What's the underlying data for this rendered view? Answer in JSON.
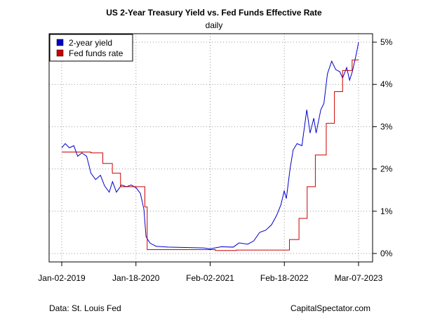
{
  "chart_data": {
    "type": "line",
    "title": "US 2-Year Treasury Yield vs. Fed Funds Effective Rate",
    "subtitle": "daily",
    "xlabel": "",
    "ylabel": "",
    "x_ticks": [
      "Jan-02-2019",
      "Jan-18-2020",
      "Feb-02-2021",
      "Feb-18-2022",
      "Mar-07-2023"
    ],
    "xlim": [
      "2019-01-02",
      "2023-03-07"
    ],
    "y_ticks": [
      "0%",
      "1%",
      "2%",
      "3%",
      "4%",
      "5%"
    ],
    "ylim": [
      -0.2,
      5.2
    ],
    "y_axis_side": "right",
    "grid": true,
    "legend_position": "top-left",
    "series": [
      {
        "name": "2-year yield",
        "color": "#0000CC",
        "points": [
          [
            "2019-01-02",
            2.5
          ],
          [
            "2019-01-20",
            2.6
          ],
          [
            "2019-02-10",
            2.5
          ],
          [
            "2019-03-05",
            2.55
          ],
          [
            "2019-03-25",
            2.3
          ],
          [
            "2019-04-15",
            2.38
          ],
          [
            "2019-05-10",
            2.3
          ],
          [
            "2019-06-01",
            1.9
          ],
          [
            "2019-06-25",
            1.75
          ],
          [
            "2019-07-20",
            1.85
          ],
          [
            "2019-08-10",
            1.6
          ],
          [
            "2019-09-03",
            1.45
          ],
          [
            "2019-09-20",
            1.7
          ],
          [
            "2019-10-10",
            1.45
          ],
          [
            "2019-11-05",
            1.62
          ],
          [
            "2019-12-01",
            1.58
          ],
          [
            "2019-12-25",
            1.62
          ],
          [
            "2020-01-20",
            1.55
          ],
          [
            "2020-02-10",
            1.42
          ],
          [
            "2020-02-28",
            1.05
          ],
          [
            "2020-03-10",
            0.4
          ],
          [
            "2020-03-20",
            0.32
          ],
          [
            "2020-04-01",
            0.24
          ],
          [
            "2020-05-01",
            0.17
          ],
          [
            "2020-07-01",
            0.15
          ],
          [
            "2020-10-01",
            0.14
          ],
          [
            "2021-01-01",
            0.13
          ],
          [
            "2021-02-02",
            0.11
          ],
          [
            "2021-04-01",
            0.16
          ],
          [
            "2021-06-01",
            0.15
          ],
          [
            "2021-07-01",
            0.25
          ],
          [
            "2021-08-15",
            0.22
          ],
          [
            "2021-09-15",
            0.3
          ],
          [
            "2021-10-15",
            0.5
          ],
          [
            "2021-11-15",
            0.55
          ],
          [
            "2021-12-15",
            0.68
          ],
          [
            "2022-01-10",
            0.9
          ],
          [
            "2022-02-01",
            1.15
          ],
          [
            "2022-02-18",
            1.48
          ],
          [
            "2022-03-01",
            1.3
          ],
          [
            "2022-03-20",
            2.0
          ],
          [
            "2022-04-05",
            2.45
          ],
          [
            "2022-04-25",
            2.6
          ],
          [
            "2022-05-20",
            2.55
          ],
          [
            "2022-06-14",
            3.4
          ],
          [
            "2022-07-01",
            2.85
          ],
          [
            "2022-07-20",
            3.2
          ],
          [
            "2022-08-01",
            2.85
          ],
          [
            "2022-08-25",
            3.4
          ],
          [
            "2022-09-10",
            3.55
          ],
          [
            "2022-09-28",
            4.25
          ],
          [
            "2022-10-20",
            4.55
          ],
          [
            "2022-11-10",
            4.35
          ],
          [
            "2022-12-01",
            4.3
          ],
          [
            "2022-12-15",
            4.15
          ],
          [
            "2023-01-05",
            4.4
          ],
          [
            "2023-01-20",
            4.1
          ],
          [
            "2023-02-03",
            4.3
          ],
          [
            "2023-02-20",
            4.65
          ],
          [
            "2023-03-01",
            4.85
          ],
          [
            "2023-03-07",
            5.0
          ]
        ]
      },
      {
        "name": "Fed funds rate",
        "color": "#CC0000",
        "points": [
          [
            "2019-01-02",
            2.4
          ],
          [
            "2019-06-01",
            2.38
          ],
          [
            "2019-08-01",
            2.13
          ],
          [
            "2019-09-19",
            1.9
          ],
          [
            "2019-10-31",
            1.58
          ],
          [
            "2020-03-04",
            1.1
          ],
          [
            "2020-03-16",
            0.09
          ],
          [
            "2020-06-01",
            0.09
          ],
          [
            "2021-03-01",
            0.07
          ],
          [
            "2021-06-17",
            0.08
          ],
          [
            "2022-03-17",
            0.33
          ],
          [
            "2022-05-05",
            0.83
          ],
          [
            "2022-06-16",
            1.58
          ],
          [
            "2022-07-28",
            2.33
          ],
          [
            "2022-09-22",
            3.08
          ],
          [
            "2022-11-03",
            3.83
          ],
          [
            "2022-12-15",
            4.33
          ],
          [
            "2023-02-02",
            4.58
          ],
          [
            "2023-03-07",
            4.58
          ]
        ]
      }
    ]
  },
  "footer": {
    "source": "Data: St. Louis Fed",
    "credit": "CapitalSpectator.com"
  }
}
